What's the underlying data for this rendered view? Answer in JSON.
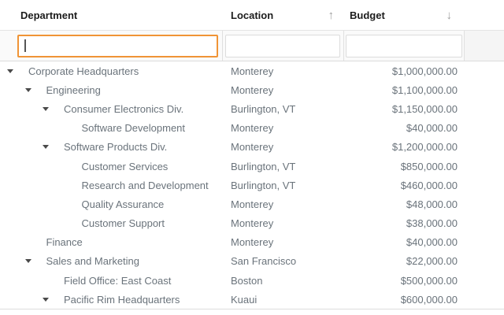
{
  "grid": {
    "columns": [
      {
        "label": "Department",
        "sort": "none"
      },
      {
        "label": "Location",
        "sort": "ascending"
      },
      {
        "label": "Budget",
        "sort": "descending"
      }
    ],
    "sort_icons": {
      "ascending": "↑",
      "descending": "↓"
    },
    "filters": {
      "department": {
        "value": "",
        "focused": true
      },
      "location": {
        "value": "",
        "focused": false
      },
      "budget": {
        "value": "",
        "focused": false
      }
    },
    "rows": [
      {
        "department": "Corporate Headquarters",
        "location": "Monterey",
        "budget": "$1,000,000.00",
        "level": 0,
        "expandable": true,
        "expanded": true
      },
      {
        "department": "Engineering",
        "location": "Monterey",
        "budget": "$1,100,000.00",
        "level": 1,
        "expandable": true,
        "expanded": true
      },
      {
        "department": "Consumer Electronics Div.",
        "location": "Burlington, VT",
        "budget": "$1,150,000.00",
        "level": 2,
        "expandable": true,
        "expanded": true
      },
      {
        "department": "Software Development",
        "location": "Monterey",
        "budget": "$40,000.00",
        "level": 3,
        "expandable": false
      },
      {
        "department": "Software Products Div.",
        "location": "Monterey",
        "budget": "$1,200,000.00",
        "level": 2,
        "expandable": true,
        "expanded": true
      },
      {
        "department": "Customer Services",
        "location": "Burlington, VT",
        "budget": "$850,000.00",
        "level": 3,
        "expandable": false
      },
      {
        "department": "Research and Development",
        "location": "Burlington, VT",
        "budget": "$460,000.00",
        "level": 3,
        "expandable": false
      },
      {
        "department": "Quality Assurance",
        "location": "Monterey",
        "budget": "$48,000.00",
        "level": 3,
        "expandable": false
      },
      {
        "department": "Customer Support",
        "location": "Monterey",
        "budget": "$38,000.00",
        "level": 3,
        "expandable": false
      },
      {
        "department": "Finance",
        "location": "Monterey",
        "budget": "$40,000.00",
        "level": 1,
        "expandable": false
      },
      {
        "department": "Sales and Marketing",
        "location": "San Francisco",
        "budget": "$22,000.00",
        "level": 1,
        "expandable": true,
        "expanded": true
      },
      {
        "department": "Field Office: East Coast",
        "location": "Boston",
        "budget": "$500,000.00",
        "level": 2,
        "expandable": false
      },
      {
        "department": "Pacific Rim Headquarters",
        "location": "Kuaui",
        "budget": "$600,000.00",
        "level": 2,
        "expandable": true,
        "expanded": true
      }
    ]
  },
  "colors": {
    "accent_focus_border": "#f09436",
    "row_text": "#6a737b",
    "header_text": "#1c1c1c",
    "border": "#e0e0e0",
    "filter_row_bg": "#fafafa",
    "filler_bg": "#f5f5f5",
    "sort_icon": "#9e9e9e",
    "expand_arrow": "#4a4a4a"
  }
}
